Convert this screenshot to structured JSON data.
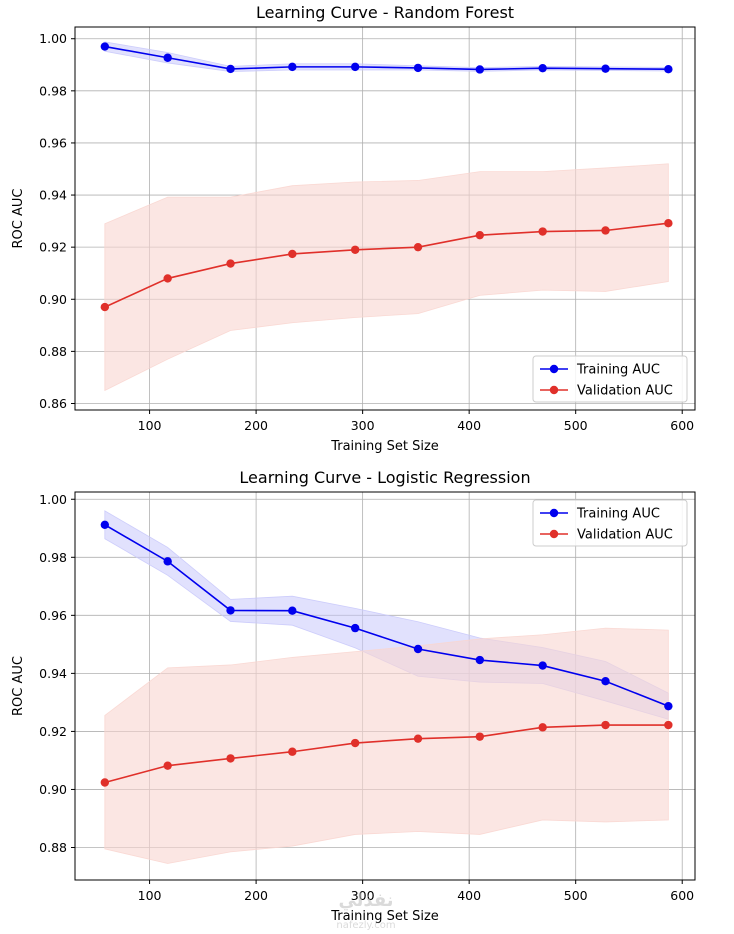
{
  "colors": {
    "training": "#0000ee",
    "validation": "#e0302a",
    "training_band": "#c9c9fb",
    "validation_band": "#f9d6d0",
    "grid": "#b0b0b0"
  },
  "watermark": {
    "main": "نفذلي",
    "sub": "nafezly.com"
  },
  "chart_data": [
    {
      "type": "line",
      "title": "Learning Curve - Random Forest",
      "xlabel": "Training Set Size",
      "ylabel": "ROC AUC",
      "xlim": [
        30,
        612
      ],
      "ylim": [
        0.8575,
        1.0045
      ],
      "xticks": [
        100,
        200,
        300,
        400,
        500,
        600
      ],
      "yticks": [
        0.86,
        0.88,
        0.9,
        0.92,
        0.94,
        0.96,
        0.98,
        1.0
      ],
      "ytick_labels": [
        "0.86",
        "0.88",
        "0.90",
        "0.92",
        "0.94",
        "0.96",
        "0.98",
        "1.00"
      ],
      "grid": true,
      "legend_position": "lower-right",
      "x": [
        58,
        117,
        176,
        234,
        293,
        352,
        410,
        469,
        528,
        587
      ],
      "series": [
        {
          "name": "Training AUC",
          "values": [
            0.997,
            0.9927,
            0.9884,
            0.9892,
            0.9892,
            0.9888,
            0.9882,
            0.9887,
            0.9885,
            0.9883
          ],
          "lower": [
            0.9952,
            0.9907,
            0.9874,
            0.988,
            0.988,
            0.988,
            0.9875,
            0.988,
            0.9878,
            0.9876
          ],
          "upper": [
            0.9988,
            0.9947,
            0.9894,
            0.9904,
            0.9904,
            0.9896,
            0.9889,
            0.9894,
            0.9892,
            0.989
          ]
        },
        {
          "name": "Validation AUC",
          "values": [
            0.897,
            0.908,
            0.9137,
            0.9174,
            0.919,
            0.92,
            0.9246,
            0.926,
            0.9264,
            0.9292
          ],
          "lower": [
            0.865,
            0.877,
            0.888,
            0.891,
            0.893,
            0.8945,
            0.9015,
            0.9035,
            0.903,
            0.9068
          ],
          "upper": [
            0.929,
            0.9392,
            0.9392,
            0.9436,
            0.945,
            0.9456,
            0.949,
            0.949,
            0.9504,
            0.952
          ]
        }
      ]
    },
    {
      "type": "line",
      "title": "Learning Curve - Logistic Regression",
      "xlabel": "Training Set Size",
      "ylabel": "ROC AUC",
      "xlim": [
        30,
        612
      ],
      "ylim": [
        0.8688,
        1.0025
      ],
      "xticks": [
        100,
        200,
        300,
        400,
        500,
        600
      ],
      "yticks": [
        0.88,
        0.9,
        0.92,
        0.94,
        0.96,
        0.98,
        1.0
      ],
      "ytick_labels": [
        "0.88",
        "0.90",
        "0.92",
        "0.94",
        "0.96",
        "0.98",
        "1.00"
      ],
      "grid": true,
      "legend_position": "upper-right",
      "x": [
        58,
        117,
        176,
        234,
        293,
        352,
        410,
        469,
        528,
        587
      ],
      "series": [
        {
          "name": "Training AUC",
          "values": [
            0.9912,
            0.9786,
            0.9617,
            0.9616,
            0.9556,
            0.9484,
            0.9446,
            0.9427,
            0.9373,
            0.9287
          ],
          "lower": [
            0.9864,
            0.9738,
            0.9579,
            0.9566,
            0.9488,
            0.939,
            0.937,
            0.9365,
            0.9305,
            0.9242
          ],
          "upper": [
            0.996,
            0.9834,
            0.9655,
            0.9666,
            0.9624,
            0.9578,
            0.9522,
            0.9489,
            0.9441,
            0.9332
          ]
        },
        {
          "name": "Validation AUC",
          "values": [
            0.9024,
            0.9082,
            0.9107,
            0.913,
            0.916,
            0.9175,
            0.9182,
            0.9214,
            0.9222,
            0.9222
          ],
          "lower": [
            0.8795,
            0.8745,
            0.8785,
            0.8805,
            0.8845,
            0.8855,
            0.8845,
            0.8895,
            0.8888,
            0.8895
          ],
          "upper": [
            0.9255,
            0.9419,
            0.9429,
            0.9455,
            0.9475,
            0.9495,
            0.9519,
            0.9533,
            0.9556,
            0.9549
          ]
        }
      ]
    }
  ]
}
